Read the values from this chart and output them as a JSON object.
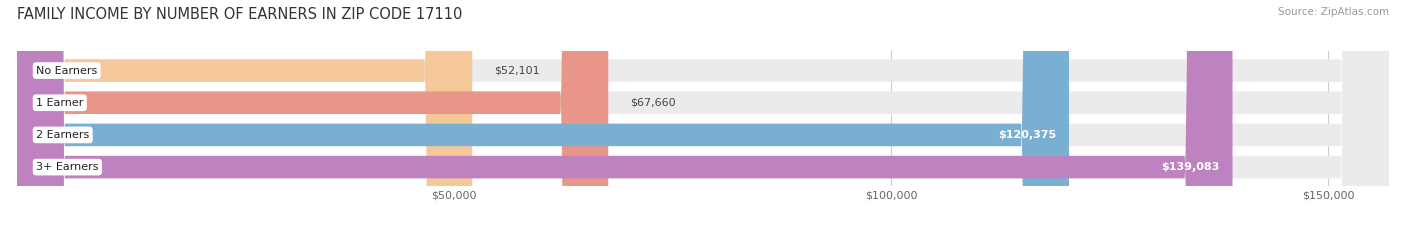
{
  "title": "FAMILY INCOME BY NUMBER OF EARNERS IN ZIP CODE 17110",
  "source": "Source: ZipAtlas.com",
  "categories": [
    "No Earners",
    "1 Earner",
    "2 Earners",
    "3+ Earners"
  ],
  "values": [
    52101,
    67660,
    120375,
    139083
  ],
  "bar_colors": [
    "#f5c89a",
    "#e8958a",
    "#7aafd4",
    "#bf82c0"
  ],
  "value_labels": [
    "$52,101",
    "$67,660",
    "$120,375",
    "$139,083"
  ],
  "xmin": 0,
  "xmax": 157000,
  "xticks": [
    50000,
    100000,
    150000
  ],
  "xtick_labels": [
    "$50,000",
    "$100,000",
    "$150,000"
  ],
  "background_color": "#ffffff",
  "bar_bg_color": "#ebebeb",
  "title_fontsize": 10.5,
  "source_fontsize": 7.5,
  "label_fontsize": 8.0,
  "value_fontsize": 8.0
}
